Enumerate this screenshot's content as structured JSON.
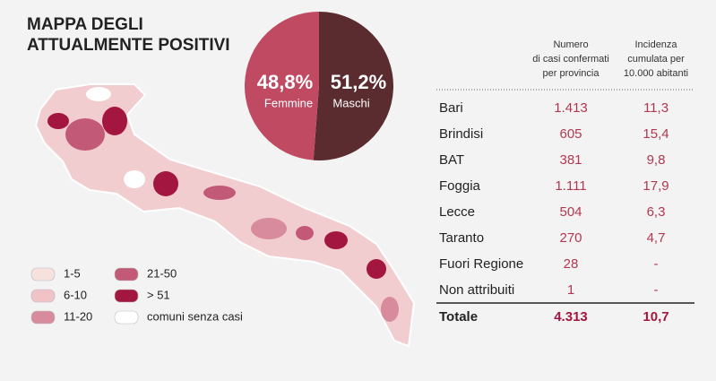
{
  "title": [
    "MAPPA DEGLI",
    "ATTUALMENTE POSITIVI"
  ],
  "chart_data": {
    "type": "pie",
    "categories": [
      "Femmine",
      "Maschi"
    ],
    "values": [
      48.8,
      51.2
    ],
    "value_labels": [
      "48,8%",
      "51,2%"
    ],
    "colors": [
      "#c04a62",
      "#5a2c30"
    ]
  },
  "map_legend": {
    "items": [
      {
        "label": "1-5",
        "color": "#f7e1df"
      },
      {
        "label": "6-10",
        "color": "#f1c3c6"
      },
      {
        "label": "11-20",
        "color": "#d98b9e"
      },
      {
        "label": "21-50",
        "color": "#c25a77"
      },
      {
        "label": "> 51",
        "color": "#a3163f"
      },
      {
        "label": "comuni senza casi",
        "color": "#ffffff"
      }
    ]
  },
  "table": {
    "headers": [
      [
        "Numero",
        "di casi confermati",
        "per provincia"
      ],
      [
        "Incidenza",
        "cumulata per",
        "10.000 abitanti"
      ]
    ],
    "rows": [
      [
        "Bari",
        "1.413",
        "11,3"
      ],
      [
        "Brindisi",
        "605",
        "15,4"
      ],
      [
        "BAT",
        "381",
        "9,8"
      ],
      [
        "Foggia",
        "1.111",
        "17,9"
      ],
      [
        "Lecce",
        "504",
        "6,3"
      ],
      [
        "Taranto",
        "270",
        "4,7"
      ],
      [
        "Fuori Regione",
        "28",
        "-"
      ],
      [
        "Non attribuiti",
        "1",
        "-"
      ]
    ],
    "total": [
      "Totale",
      "4.313",
      "10,7"
    ]
  }
}
